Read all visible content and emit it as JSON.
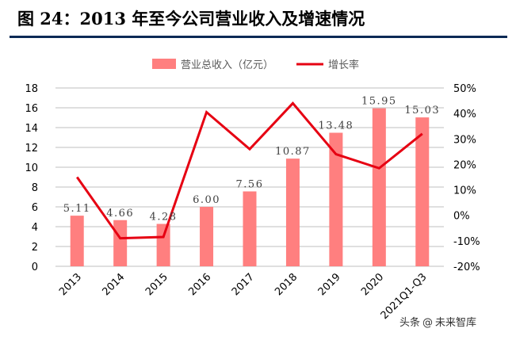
{
  "page": {
    "title": "图 24：2013 年至今公司营业收入及增速情况",
    "watermark": {
      "left": "头条",
      "right": "未来智库"
    }
  },
  "colors": {
    "bar": "#ff7f7f",
    "line": "#e60012",
    "grid": "#bfbfbf",
    "rule": "#0b2a55"
  },
  "chart_data": {
    "type": "bar+line",
    "categories": [
      "2013",
      "2014",
      "2015",
      "2016",
      "2017",
      "2018",
      "2019",
      "2020",
      "2021Q1-Q3"
    ],
    "series": [
      {
        "name": "营业总收入（亿元）",
        "type": "bar",
        "axis": "left",
        "values": [
          5.11,
          4.66,
          4.28,
          6.0,
          7.56,
          10.87,
          13.48,
          15.95,
          15.03
        ],
        "labels": [
          "5.11",
          "4.66",
          "4.28",
          "6.00",
          "7.56",
          "10.87",
          "13.48",
          "15.95",
          "15.03"
        ]
      },
      {
        "name": "增长率",
        "type": "line",
        "axis": "right",
        "values": [
          15,
          -9,
          -8.5,
          40.5,
          26,
          44,
          24,
          18.5,
          32
        ]
      }
    ],
    "y_left": {
      "min": 0,
      "max": 18,
      "ticks": [
        "0",
        "2",
        "4",
        "6",
        "8",
        "10",
        "12",
        "14",
        "16",
        "18"
      ]
    },
    "y_right": {
      "min": -20,
      "max": 50,
      "ticks": [
        "-20%",
        "-10%",
        "0%",
        "10%",
        "20%",
        "30%",
        "40%",
        "50%"
      ]
    },
    "grid": true,
    "legend_position": "top-center"
  }
}
